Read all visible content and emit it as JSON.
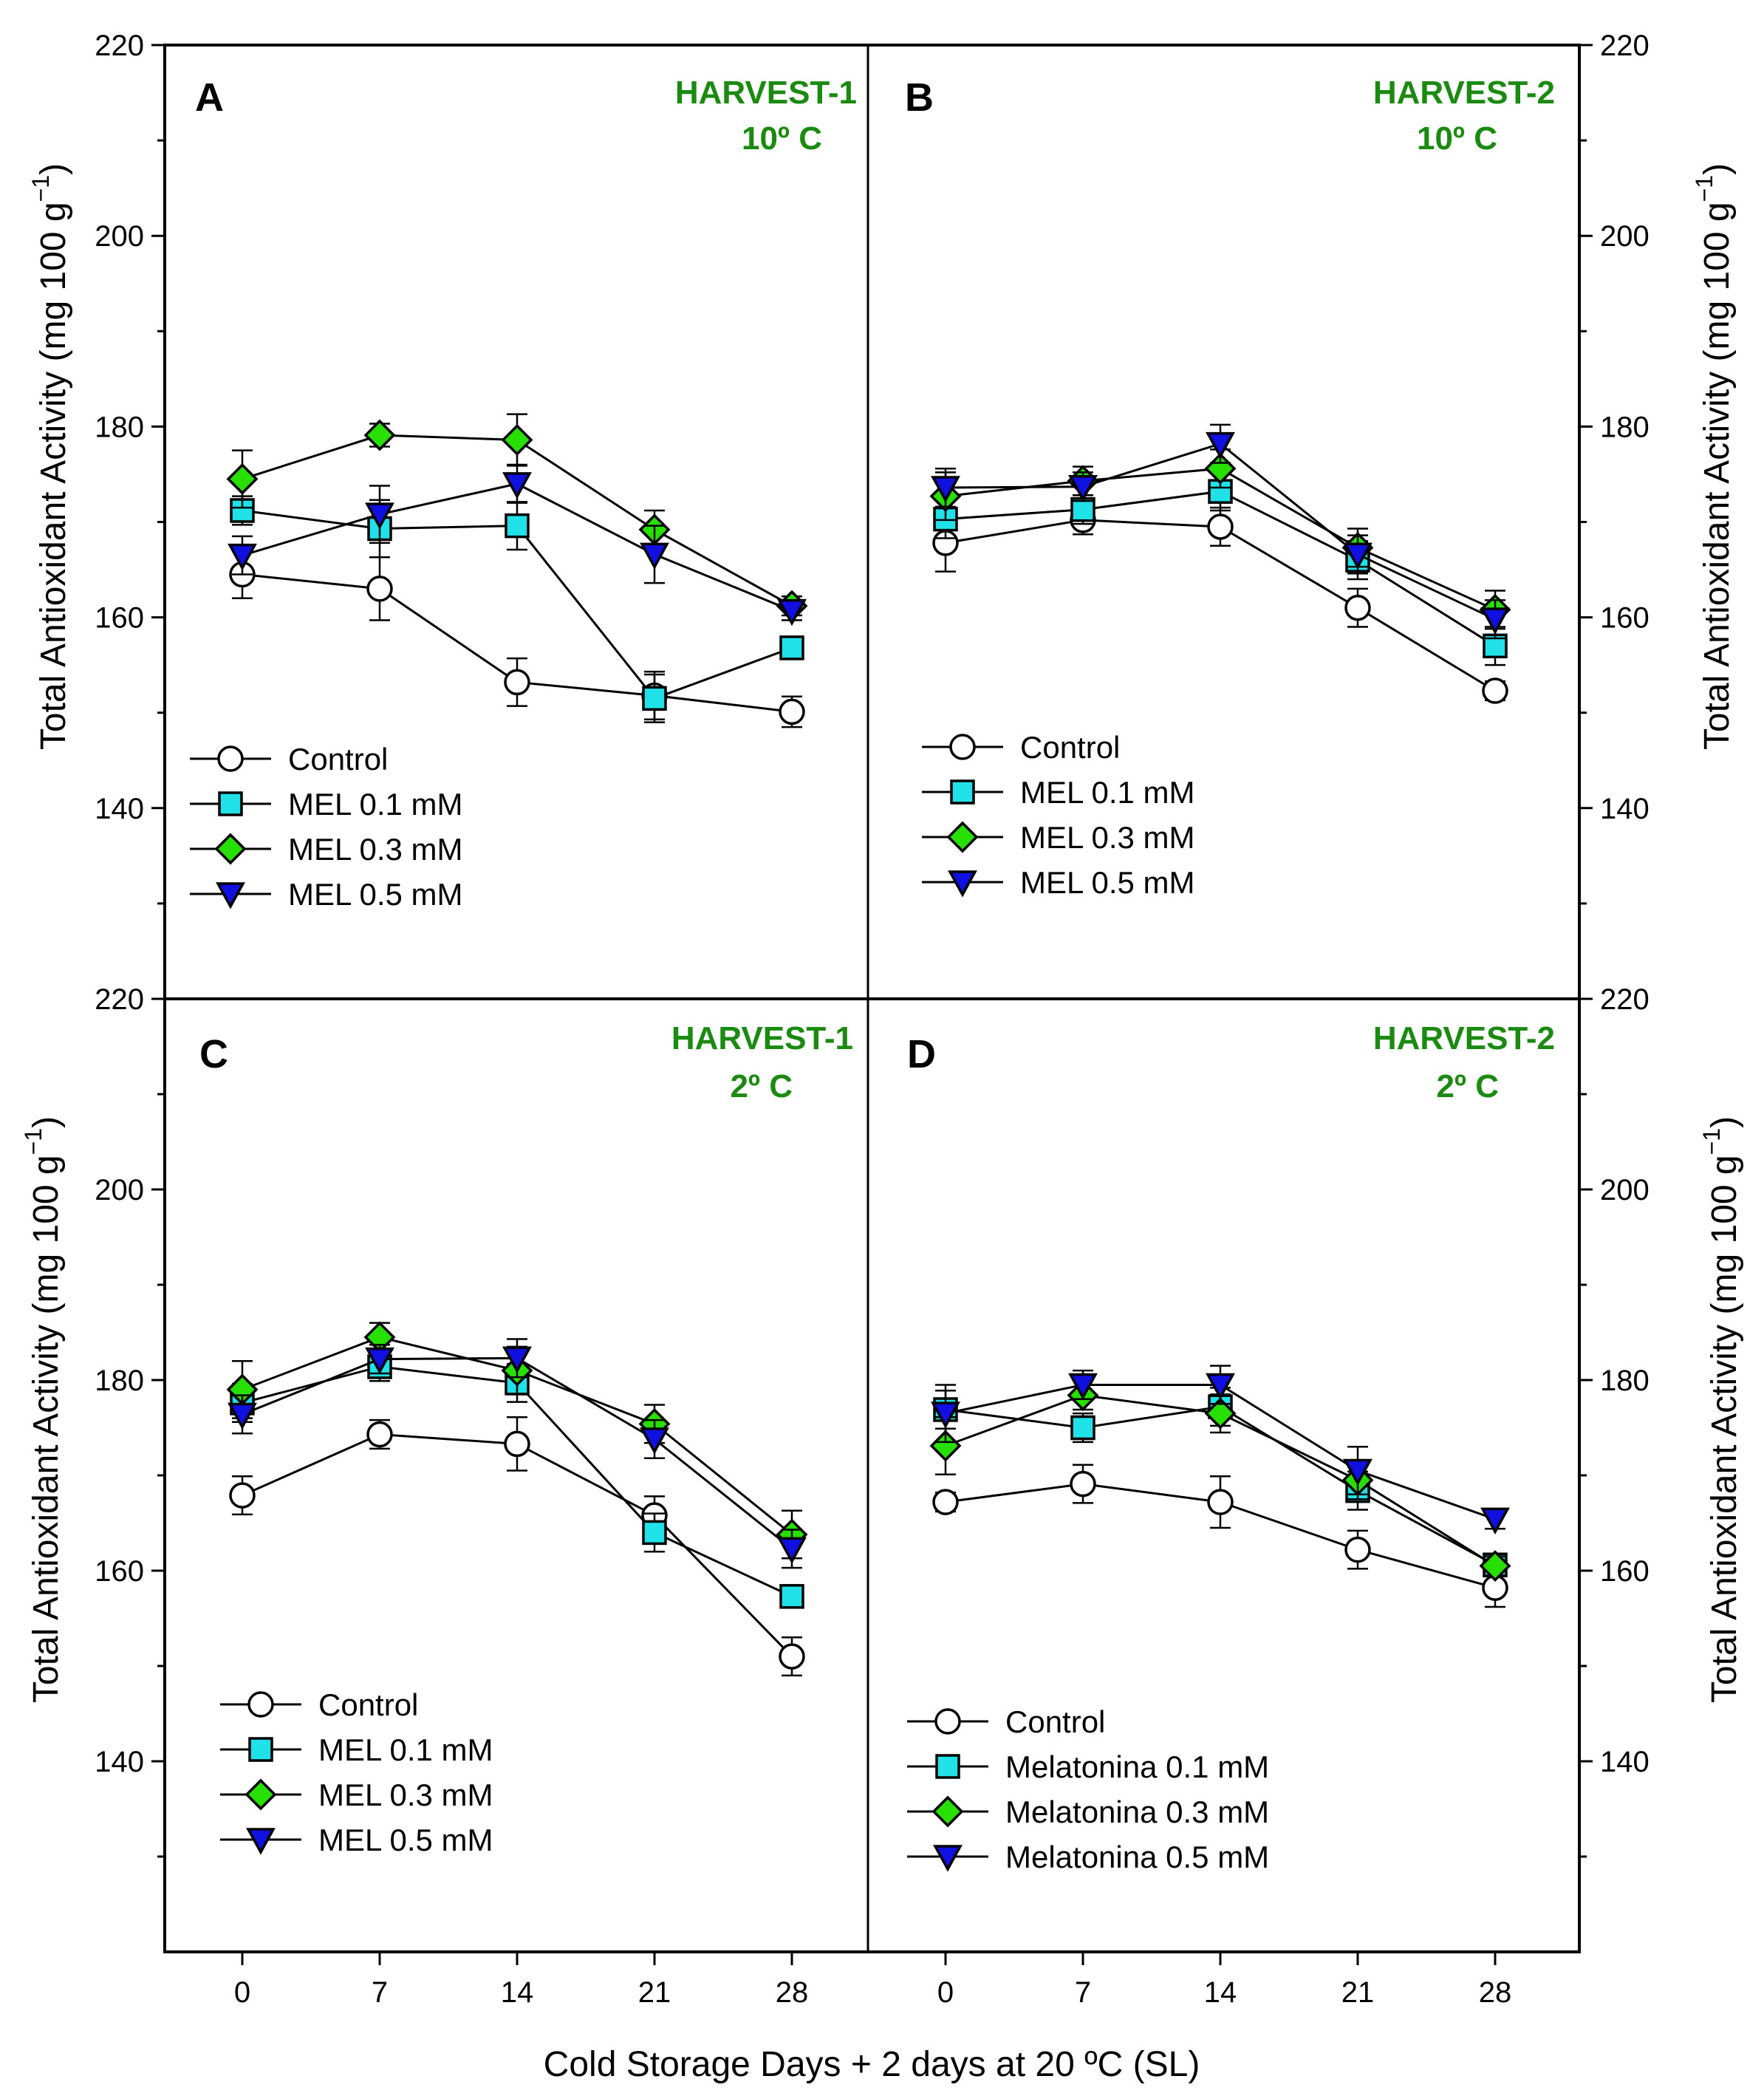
{
  "colors": {
    "control_fill": "#ffffff",
    "mel01_fill": "#20e0e8",
    "mel03_fill": "#28e000",
    "mel05_fill": "#1010e0",
    "heading": "#1a8a10",
    "stroke": "#000000"
  },
  "axes": {
    "x_title": "Cold Storage Days + 2 days at 20 ºC (SL)",
    "y_title": "Total Antioxidant Activity (mg 100 g",
    "y_title_sup": "−1",
    "y_title_close": ")",
    "y_ticks": [
      "220",
      "200",
      "180",
      "160",
      "140"
    ],
    "x_ticks": [
      "0",
      "7",
      "14",
      "21",
      "28"
    ]
  },
  "chart_data": [
    {
      "type": "line",
      "panel": "A",
      "heading": [
        "HARVEST-1",
        "10º C"
      ],
      "x": [
        0,
        7,
        14,
        21,
        28
      ],
      "ylim": [
        120,
        220
      ],
      "legend": [
        "Control",
        "MEL 0.1 mM",
        "MEL 0.3 mM",
        "MEL 0.5 mM"
      ],
      "series": [
        {
          "name": "Control",
          "values": [
            164.5,
            163.0,
            153.2,
            151.8,
            150.1
          ],
          "errors": [
            2.5,
            3.3,
            2.5,
            2.5,
            1.6
          ]
        },
        {
          "name": "MEL 0.1 mM",
          "values": [
            171.2,
            169.3,
            169.6,
            151.5,
            156.8
          ],
          "errors": [
            1.5,
            3.0,
            2.5,
            2.5,
            1.0
          ]
        },
        {
          "name": "MEL 0.3 mM",
          "values": [
            174.5,
            179.1,
            178.6,
            169.2,
            161.2
          ],
          "errors": [
            3.0,
            1.2,
            2.7,
            2.0,
            1.0
          ]
        },
        {
          "name": "MEL 0.5 mM",
          "values": [
            166.5,
            170.8,
            174.0,
            166.6,
            160.7
          ],
          "errors": [
            2.0,
            3.0,
            2.0,
            3.0,
            1.0
          ]
        }
      ]
    },
    {
      "type": "line",
      "panel": "B",
      "heading": [
        "HARVEST-2",
        "10º C"
      ],
      "x": [
        0,
        7,
        14,
        21,
        28
      ],
      "ylim": [
        120,
        220
      ],
      "legend": [
        "Control",
        "MEL 0.1 mM",
        "MEL 0.3 mM",
        "MEL 0.5 mM"
      ],
      "series": [
        {
          "name": "Control",
          "values": [
            167.8,
            170.2,
            169.5,
            161.0,
            152.3
          ],
          "errors": [
            3.0,
            1.5,
            2.0,
            2.0,
            1.0
          ]
        },
        {
          "name": "MEL 0.1 mM",
          "values": [
            170.3,
            171.3,
            173.2,
            166.0,
            157.0
          ],
          "errors": [
            2.0,
            1.5,
            2.0,
            2.0,
            2.0
          ]
        },
        {
          "name": "MEL 0.3 mM",
          "values": [
            172.7,
            174.3,
            175.6,
            167.3,
            160.8
          ],
          "errors": [
            2.5,
            1.5,
            2.0,
            2.0,
            2.0
          ]
        },
        {
          "name": "MEL 0.5 mM",
          "values": [
            173.6,
            173.7,
            178.2,
            166.6,
            159.8
          ],
          "errors": [
            2.0,
            1.5,
            2.0,
            2.0,
            2.0
          ]
        }
      ]
    },
    {
      "type": "line",
      "panel": "C",
      "heading": [
        "HARVEST-1",
        "2º C"
      ],
      "x": [
        0,
        7,
        14,
        21,
        28
      ],
      "ylim": [
        120,
        220
      ],
      "legend": [
        "Control",
        "MEL 0.1 mM",
        "MEL 0.3 mM",
        "MEL 0.5 mM"
      ],
      "series": [
        {
          "name": "Control",
          "values": [
            167.9,
            174.3,
            173.3,
            165.8,
            151.0
          ],
          "errors": [
            2.0,
            1.5,
            2.8,
            2.0,
            2.0
          ]
        },
        {
          "name": "MEL 0.1 mM",
          "values": [
            177.6,
            181.4,
            179.7,
            164.0,
            157.3
          ],
          "errors": [
            2.0,
            1.5,
            2.0,
            2.0,
            1.0
          ]
        },
        {
          "name": "MEL 0.3 mM",
          "values": [
            179.0,
            184.5,
            181.0,
            175.4,
            163.8
          ],
          "errors": [
            3.0,
            1.5,
            2.5,
            2.0,
            2.5
          ]
        },
        {
          "name": "MEL 0.5 mM",
          "values": [
            176.4,
            182.2,
            182.3,
            173.8,
            162.3
          ],
          "errors": [
            2.0,
            1.5,
            2.0,
            2.0,
            2.0
          ]
        }
      ]
    },
    {
      "type": "line",
      "panel": "D",
      "heading": [
        "HARVEST-2",
        "2º C"
      ],
      "x": [
        0,
        7,
        14,
        21,
        28
      ],
      "ylim": [
        120,
        220
      ],
      "legend": [
        "Control",
        "Melatonina 0.1 mM",
        "Melatonina 0.3 mM",
        "Melatonina 0.5 mM"
      ],
      "series": [
        {
          "name": "Control",
          "values": [
            167.2,
            169.1,
            167.2,
            162.2,
            158.2
          ],
          "errors": [
            1.0,
            2.0,
            2.7,
            2.0,
            2.0
          ]
        },
        {
          "name": "MEL 0.1 mM",
          "values": [
            176.9,
            175.0,
            177.2,
            168.4,
            160.6
          ],
          "errors": [
            2.0,
            1.5,
            2.0,
            2.0,
            1.0
          ]
        },
        {
          "name": "MEL 0.3 mM",
          "values": [
            173.1,
            178.4,
            176.5,
            169.5,
            160.5
          ],
          "errors": [
            3.0,
            1.5,
            2.0,
            2.0,
            1.0
          ]
        },
        {
          "name": "MEL 0.5 mM",
          "values": [
            176.5,
            179.5,
            179.5,
            170.5,
            165.4
          ],
          "errors": [
            3.0,
            1.5,
            2.0,
            2.5,
            1.0
          ]
        }
      ]
    }
  ]
}
